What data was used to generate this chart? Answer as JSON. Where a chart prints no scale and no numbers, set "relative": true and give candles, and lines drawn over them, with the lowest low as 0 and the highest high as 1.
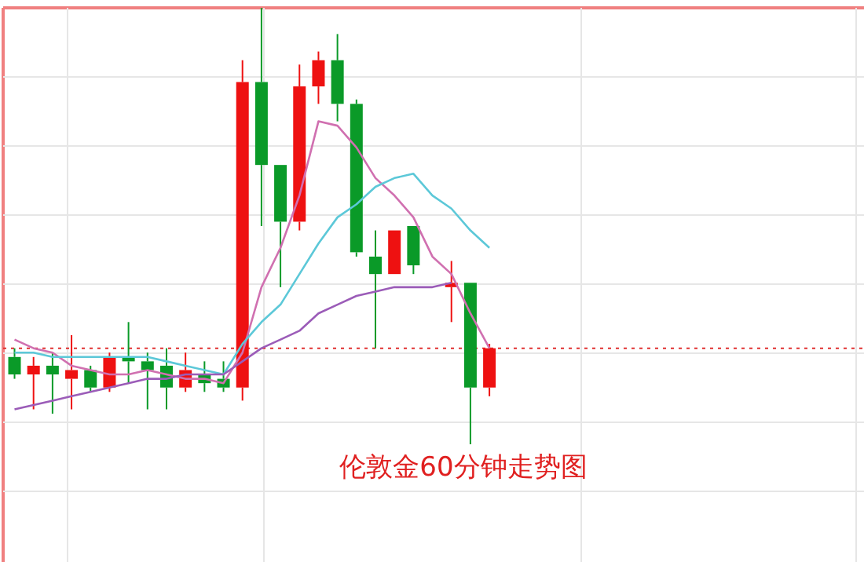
{
  "chart_data": {
    "type": "candlestick",
    "title": "伦敦金60分钟走势图",
    "relative": true,
    "grid": true,
    "categories": [
      null,
      null,
      null,
      null,
      null,
      null,
      null,
      null,
      null,
      null,
      null,
      null,
      null,
      null,
      null,
      null,
      null,
      null,
      null,
      null,
      null,
      null,
      null,
      null,
      null,
      null
    ],
    "colors": [
      "#0a9a28",
      "#ee1111",
      "#0a9a28",
      "#ee1111",
      "#0a9a28",
      "#ee1111",
      "#0a9a28",
      "#0a9a28",
      "#0a9a28",
      "#ee1111",
      "#0a9a28",
      "#0a9a28",
      "#ee1111",
      "#0a9a28",
      "#0a9a28",
      "#ee1111",
      "#ee1111",
      "#0a9a28",
      "#0a9a28",
      "#0a9a28",
      "#ee1111",
      "#0a9a28",
      null,
      "#ee1111",
      "#0a9a28",
      "#ee1111"
    ],
    "ohlc": [
      [
        0.2,
        0.22,
        0.15,
        0.16
      ],
      [
        0.16,
        0.2,
        0.08,
        0.18
      ],
      [
        0.18,
        0.21,
        0.07,
        0.16
      ],
      [
        0.15,
        0.25,
        0.08,
        0.17
      ],
      [
        0.17,
        0.18,
        0.12,
        0.13
      ],
      [
        0.13,
        0.21,
        0.12,
        0.2
      ],
      [
        0.2,
        0.28,
        0.14,
        0.19
      ],
      [
        0.19,
        0.21,
        0.08,
        0.17
      ],
      [
        0.18,
        0.22,
        0.08,
        0.13
      ],
      [
        0.13,
        0.21,
        0.12,
        0.17
      ],
      [
        0.16,
        0.19,
        0.12,
        0.14
      ],
      [
        0.15,
        0.19,
        0.12,
        0.13
      ],
      [
        0.13,
        0.88,
        0.1,
        0.83
      ],
      [
        0.83,
        1,
        0.5,
        0.64
      ],
      [
        0.64,
        0.64,
        0.36,
        0.51
      ],
      [
        0.51,
        0.87,
        0.49,
        0.82
      ],
      [
        0.82,
        0.9,
        0.78,
        0.88
      ],
      [
        0.88,
        0.94,
        0.74,
        0.78
      ],
      [
        0.78,
        0.79,
        0.43,
        0.44
      ],
      [
        0.43,
        0.49,
        0.22,
        0.39
      ],
      [
        0.39,
        0.49,
        0.39,
        0.49
      ],
      [
        0.5,
        0.5,
        0.39,
        0.41
      ],
      null,
      [
        0.36,
        0.42,
        0.28,
        0.37
      ],
      [
        0.37,
        0.37,
        0,
        0.13
      ],
      [
        0.13,
        0.23,
        0.11,
        0.22
      ]
    ],
    "series": [
      {
        "type": "line",
        "color": "#d070b0",
        "values": [
          0.24,
          0.22,
          0.21,
          0.18,
          0.17,
          0.16,
          0.16,
          0.17,
          0.16,
          0.15,
          0.15,
          0.14,
          0.21,
          0.36,
          0.45,
          0.57,
          0.74,
          0.73,
          0.68,
          0.61,
          0.57,
          0.52,
          0.43,
          0.39,
          0.3,
          0.22
        ]
      },
      {
        "type": "line",
        "color": "#5cc8d8",
        "values": [
          0.21,
          0.21,
          0.2,
          0.2,
          0.2,
          0.2,
          0.2,
          0.2,
          0.19,
          0.18,
          0.17,
          0.16,
          0.23,
          0.28,
          0.32,
          0.39,
          0.46,
          0.52,
          0.55,
          0.59,
          0.61,
          0.62,
          0.57,
          0.54,
          0.49,
          0.45
        ]
      },
      {
        "type": "line",
        "color": "#9b5cb8",
        "values": [
          0.08,
          0.09,
          0.1,
          0.11,
          0.12,
          0.13,
          0.14,
          0.15,
          0.15,
          0.16,
          0.16,
          0.16,
          0.19,
          0.22,
          0.24,
          0.26,
          0.3,
          0.32,
          0.34,
          0.35,
          0.36,
          0.36,
          0.36,
          0.37,
          null,
          null
        ]
      }
    ],
    "ref_lines": [
      {
        "axis": "y",
        "value": 0.22,
        "color": "#e03030",
        "line_style": "dotted"
      }
    ]
  }
}
